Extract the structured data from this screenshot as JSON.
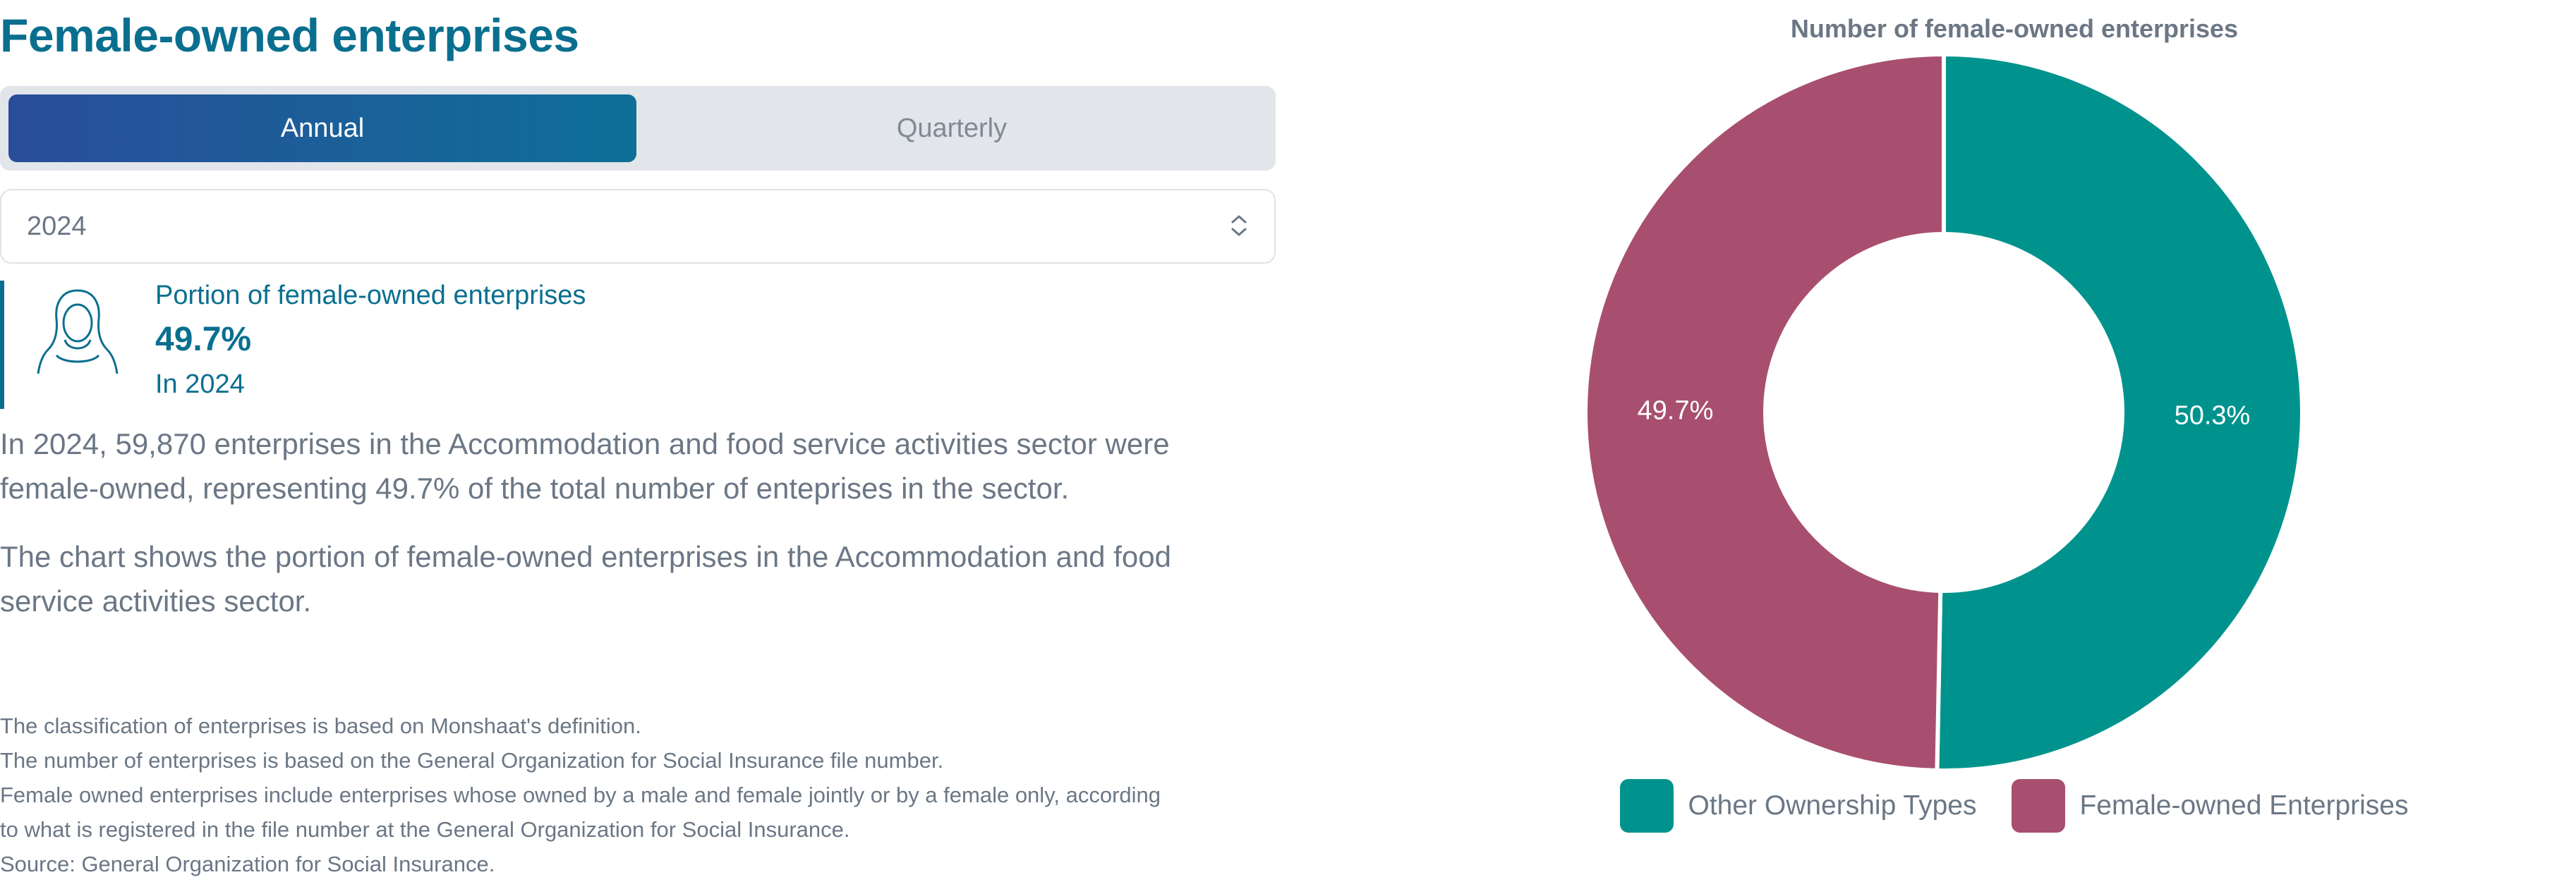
{
  "page": {
    "title": "Female-owned enterprises"
  },
  "period_toggle": {
    "options": [
      "Annual",
      "Quarterly"
    ],
    "selected": "Annual"
  },
  "year_select": {
    "value": "2024"
  },
  "kpi": {
    "icon": "female-person-icon",
    "label": "Portion of female-owned enterprises",
    "value": "49.7%",
    "subtitle": "In 2024"
  },
  "description": {
    "paragraph1": "In 2024, 59,870 enterprises in the Accommodation and food service activities sector were female-owned, representing 49.7% of the total number of enteprises in the sector.",
    "paragraph2": "The chart shows the portion of female-owned enterprises in the Accommodation and food service activities sector."
  },
  "notes": [
    "The classification of enterprises is based on Monshaat's definition.",
    "The number of enterprises is based on the General Organization for Social Insurance file number.",
    "Female owned enterprises include enterprises whose owned by a male and female jointly or by a female only, according",
    "to what is registered in the file number at the General Organization for Social Insurance.",
    "Source: General Organization for Social Insurance."
  ],
  "colors": {
    "accent": "#0a6f8f",
    "toggle_gradient_start": "#2a4d9a",
    "toggle_gradient_end": "#0e6f98"
  },
  "chart_data": {
    "type": "pie",
    "title": "Number of female-owned enterprises",
    "donut": true,
    "slices": [
      {
        "label": "Other Ownership Types",
        "value": 50.3,
        "display": "50.3%",
        "color": "#00938e"
      },
      {
        "label": "Female-owned Enterprises",
        "value": 49.7,
        "display": "49.7%",
        "color": "#a84f6f"
      }
    ],
    "legend_position": "bottom"
  }
}
